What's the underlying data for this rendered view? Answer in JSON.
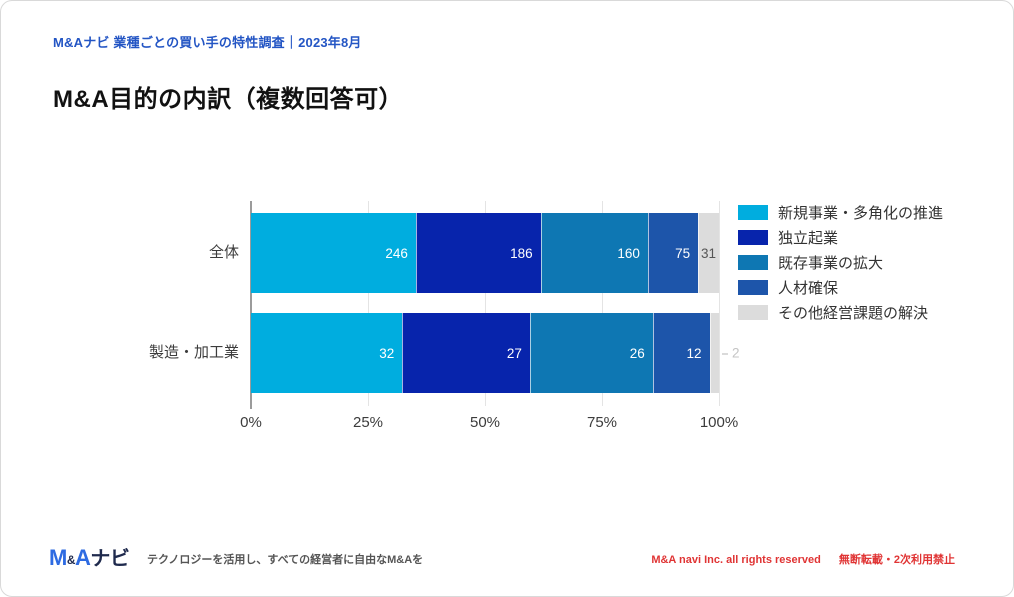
{
  "header": {
    "text": "M&Aナビ 業種ごとの買い手の特性調査｜2023年8月"
  },
  "title": "M&A目的の内訳（複数回答可）",
  "chart_data": {
    "type": "bar",
    "orientation": "horizontal",
    "stacked": true,
    "normalized": "each bar scaled to 100%",
    "categories": [
      "全体",
      "製造・加工業"
    ],
    "series": [
      {
        "name": "新規事業・多角化の推進",
        "color": "#00ADDF",
        "label_color": "#FFFFFF",
        "values": [
          246,
          32
        ]
      },
      {
        "name": "独立起業",
        "color": "#0724AC",
        "label_color": "#FFFFFF",
        "values": [
          186,
          27
        ]
      },
      {
        "name": "既存事業の拡大",
        "color": "#0E77B3",
        "label_color": "#FFFFFF",
        "values": [
          160,
          26
        ]
      },
      {
        "name": "人材確保",
        "color": "#1D55AA",
        "label_color": "#FFFFFF",
        "values": [
          75,
          12
        ]
      },
      {
        "name": "その他経営課題の解決",
        "color": "#DCDCDC",
        "label_color": "#555555",
        "values": [
          31,
          2
        ]
      }
    ],
    "x_ticks": [
      "0%",
      "25%",
      "50%",
      "75%",
      "100%"
    ],
    "xlim": [
      0,
      100
    ],
    "grid": true,
    "legend_position": "right"
  },
  "footer": {
    "logo": {
      "m": "M",
      "amp": "&",
      "a": "A",
      "navi": "ナビ"
    },
    "tagline": "テクノロジーを活用し、すべての経営者に自由なM&Aを",
    "copyright": "M&A navi Inc. all rights reserved",
    "notice": "無断転載・2次利用禁止"
  },
  "colors": {
    "header_blue": "#2355C4",
    "axis_gray": "#9B9B9B",
    "grid_gray": "#E4E4E4",
    "notice_red": "#E03434"
  }
}
